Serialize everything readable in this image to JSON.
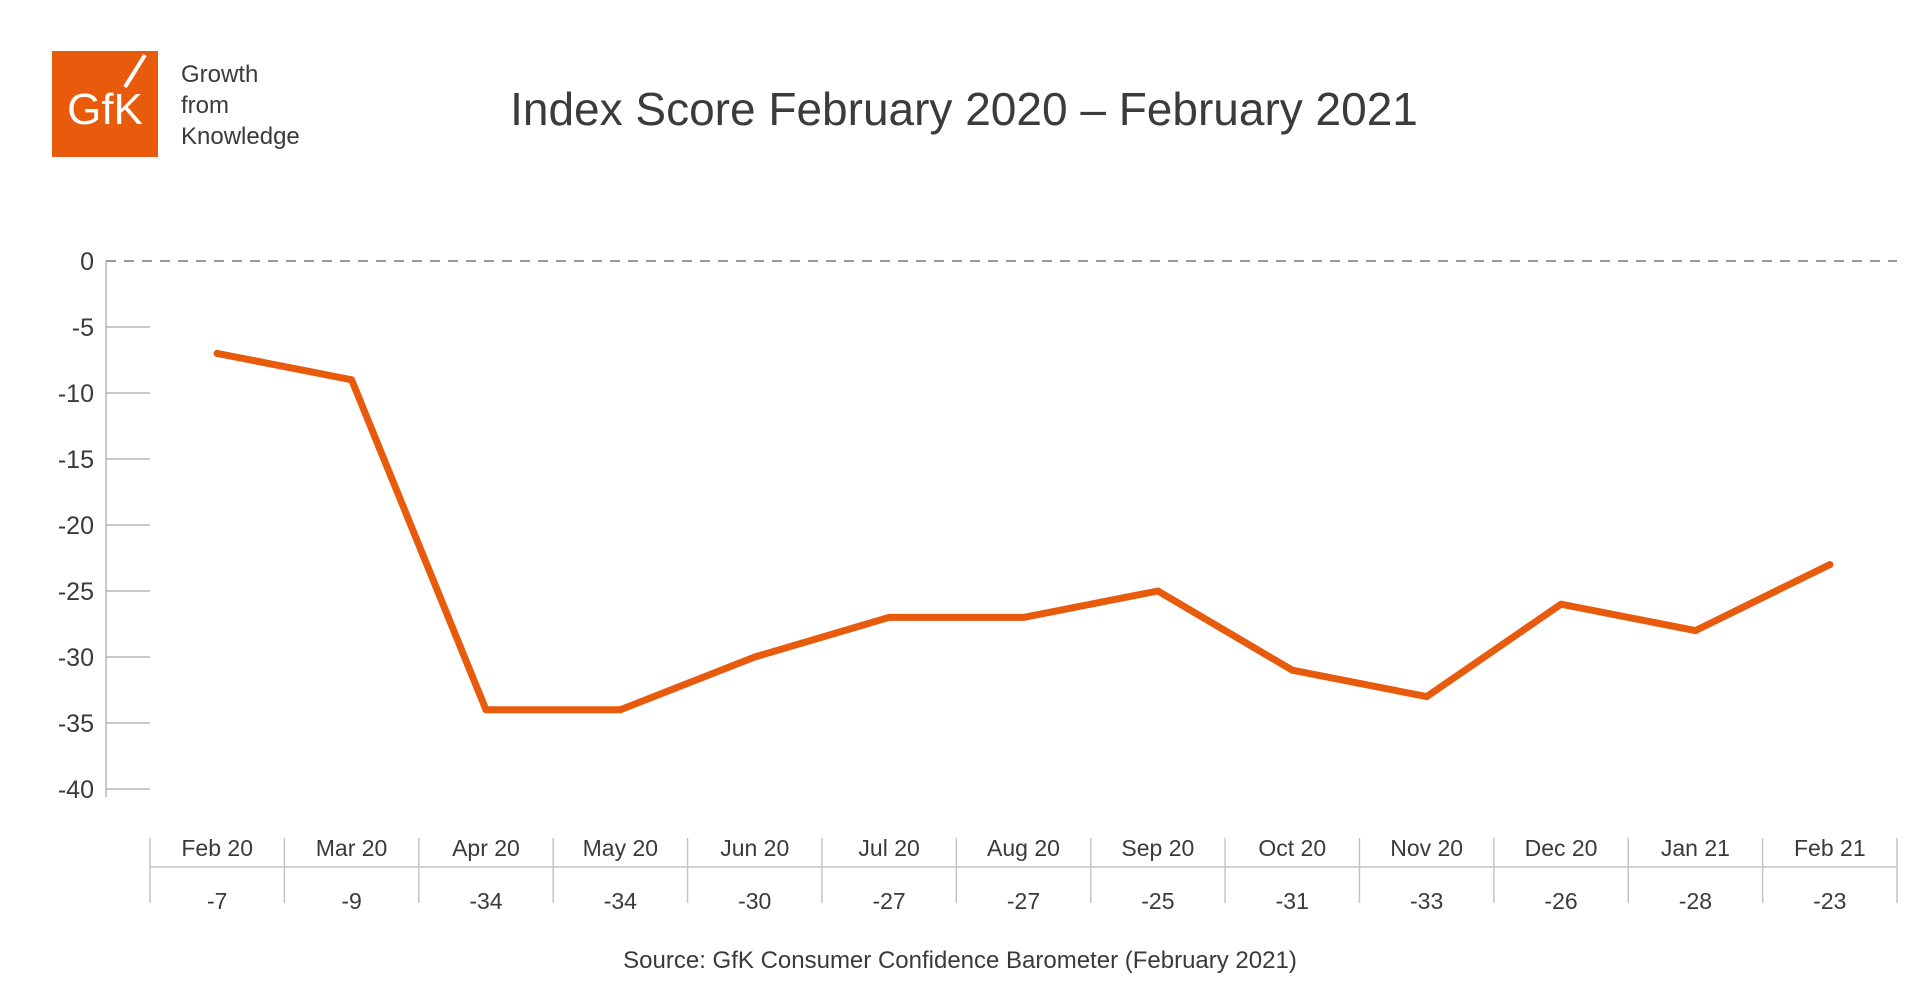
{
  "brand": {
    "logo_text": "GfK",
    "tagline": [
      "Growth",
      "from",
      "Knowledge"
    ],
    "logo_color": "#e85b0c"
  },
  "chart_data": {
    "type": "line",
    "title": "Index Score February 2020 – February 2021",
    "categories": [
      "Feb 20",
      "Mar 20",
      "Apr 20",
      "May 20",
      "Jun 20",
      "Jul 20",
      "Aug 20",
      "Sep 20",
      "Oct 20",
      "Nov 20",
      "Dec 20",
      "Jan 21",
      "Feb 21"
    ],
    "series": [
      {
        "values": [
          -7,
          -9,
          -34,
          -34,
          -30,
          -27,
          -27,
          -25,
          -31,
          -33,
          -26,
          -28,
          -23
        ],
        "color": "#e85b0c"
      }
    ],
    "value_labels": [
      "-7",
      "-9",
      "-34",
      "-34",
      "-30",
      "-27",
      "-27",
      "-25",
      "-31",
      "-33",
      "-26",
      "-28",
      "-23"
    ],
    "y_ticks": [
      "0",
      "-5",
      "-10",
      "-15",
      "-20",
      "-25",
      "-30",
      "-35",
      "-40"
    ],
    "ylim": [
      -40,
      0
    ],
    "zero_line": "dashed",
    "grid": false,
    "legend": "none"
  },
  "source": "Source: GfK Consumer Confidence Barometer (February 2021)"
}
